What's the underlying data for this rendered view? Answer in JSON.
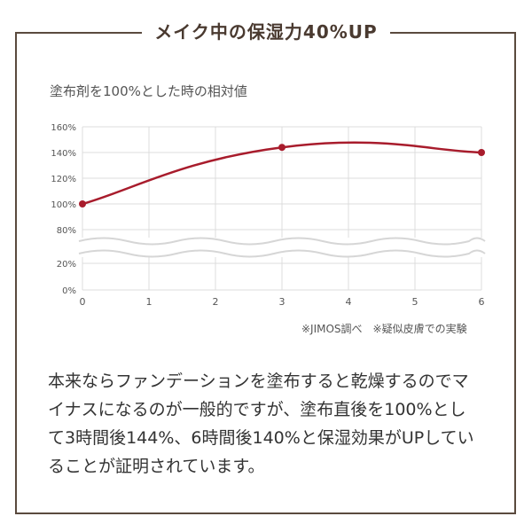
{
  "title": "メイク中の保湿力40%UP",
  "chart_data": {
    "type": "line",
    "title": "塗布剤を100%とした時の相対値",
    "x": [
      0,
      1,
      2,
      3,
      4,
      5,
      6
    ],
    "xlim": [
      0,
      6
    ],
    "y_ticks_upper": [
      "160%",
      "140%",
      "120%",
      "100%",
      "80%"
    ],
    "y_ticks_lower": [
      "20%",
      "0%"
    ],
    "axis_break": true,
    "grid": true,
    "series": [
      {
        "points": [
          [
            0,
            100
          ],
          [
            3,
            144
          ],
          [
            6,
            140
          ]
        ],
        "color": "#a81c2c"
      }
    ],
    "note": "※JIMOS調べ　※疑似皮膚での実験"
  },
  "body": {
    "lines": [
      "本来ならファンデーションを塗布すると乾燥するのでマ",
      "イナスになるのが一般的ですが、塗布直後を100%とし",
      "て3時間後144%、6時間後140%と保湿効果がUPしてい",
      "ることが証明されています。"
    ]
  }
}
